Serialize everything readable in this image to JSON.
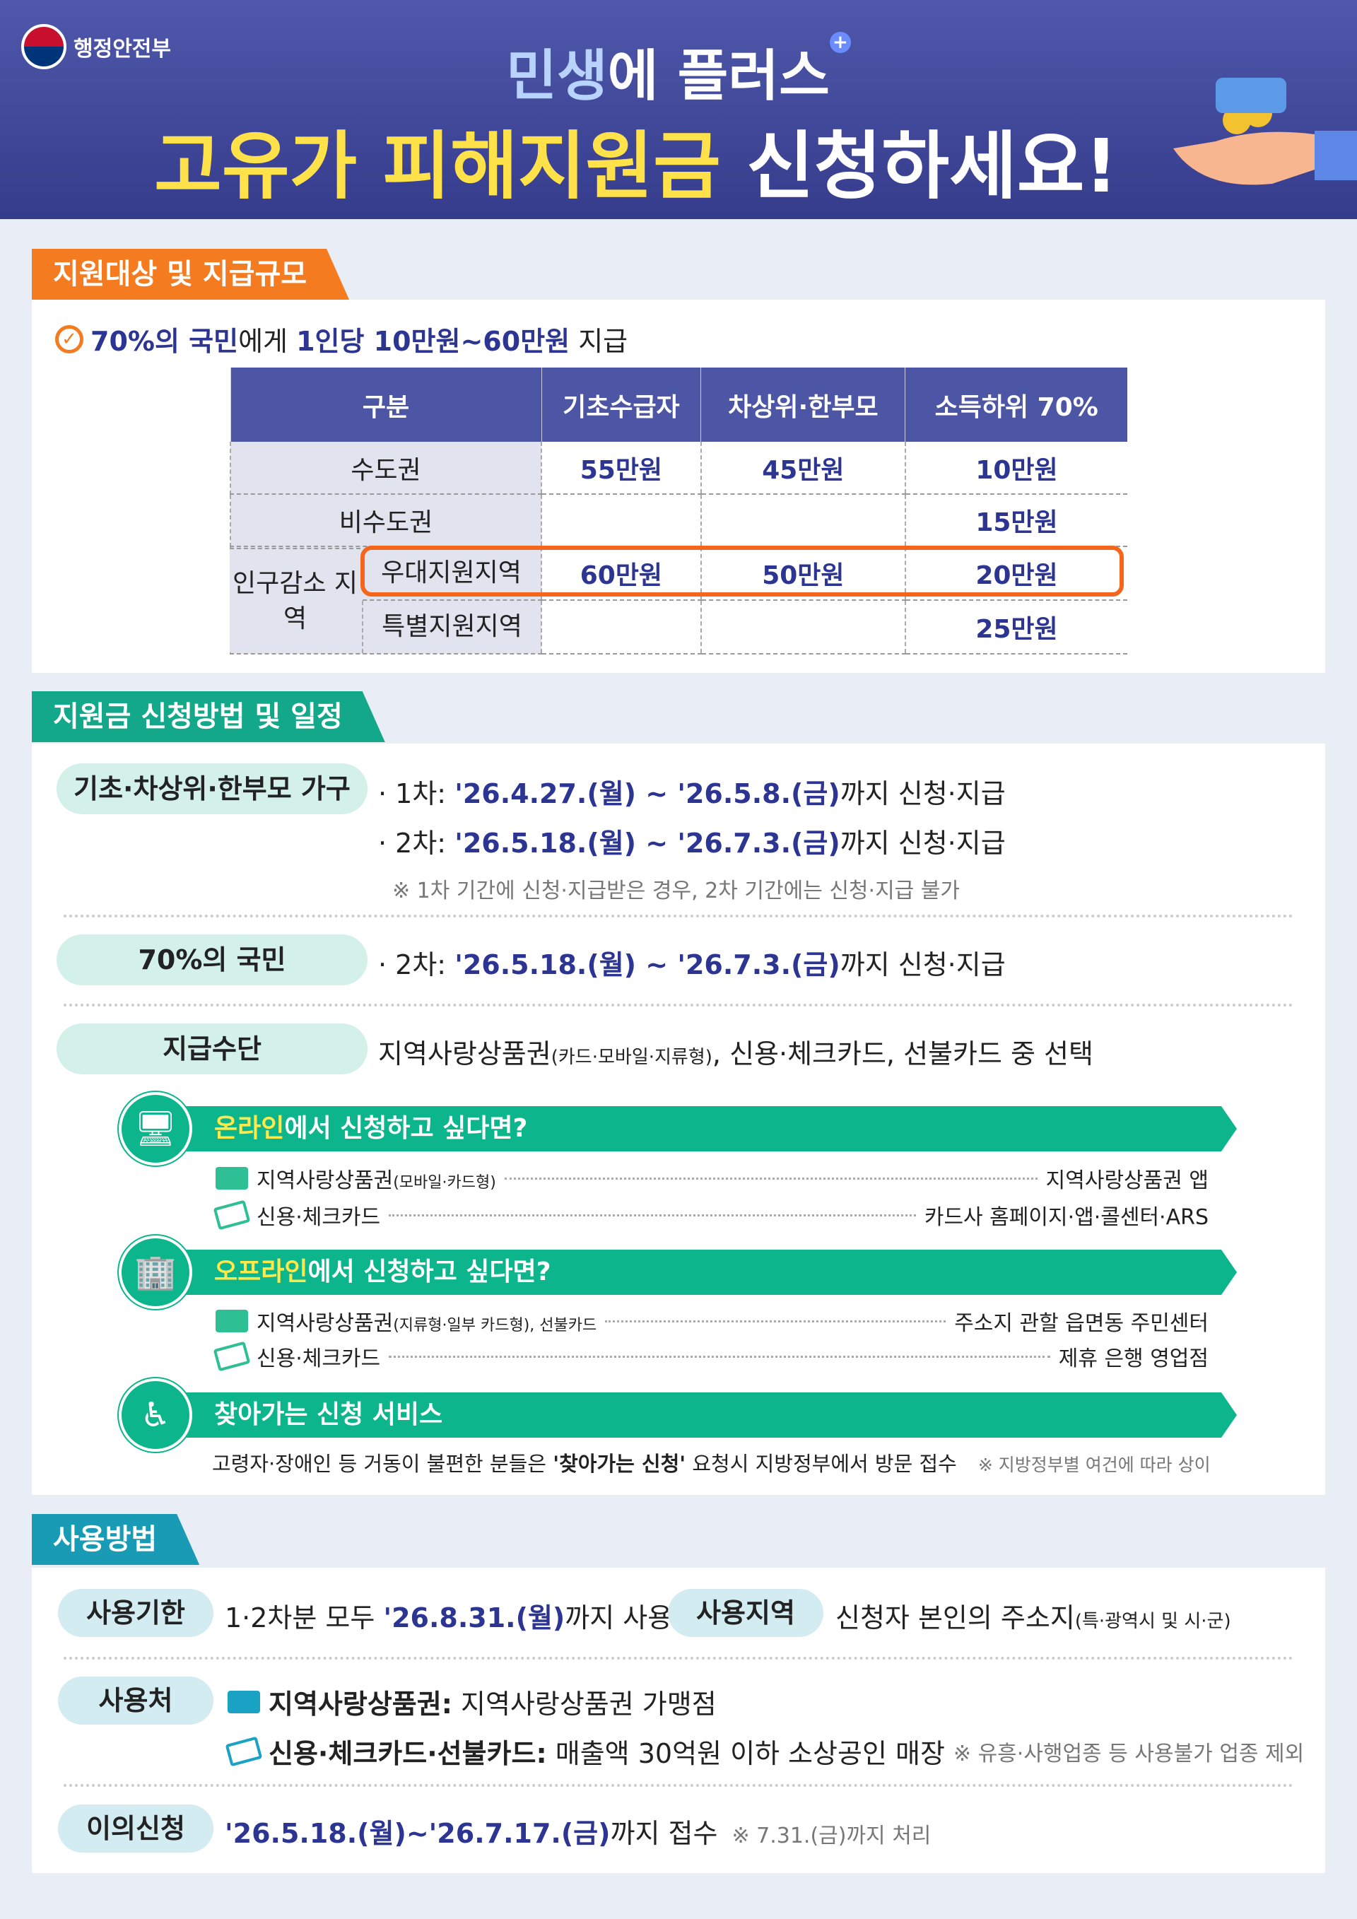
{
  "header": {
    "ministry": "행정안전부",
    "subtitle_hl": "민생",
    "subtitle_rest": "에 플러스",
    "plus": "+",
    "title_hl": "고유가 피해지원금",
    "title_rest": " 신청하세요!"
  },
  "colors": {
    "header": "#4f58ab",
    "section1": "#f47b20",
    "section2": "#14a88a",
    "section3": "#1a9bb5",
    "navy": "#2d3592",
    "highlight": "#f4661c"
  },
  "section1": {
    "tab": "지원대상 및 지급규모",
    "check_a": "70%의 국민",
    "check_b": "에게 ",
    "check_c": "1인당 10만원~60만원",
    "check_d": " 지급",
    "table": {
      "headers": [
        "구분",
        "기초수급자",
        "차상위·한부모",
        "소득하위 70%"
      ],
      "rows": [
        {
          "label": "수도권",
          "values": [
            "55만원",
            "45만원",
            "10만원"
          ]
        },
        {
          "label": "비수도권",
          "values": [
            "",
            "",
            "15만원"
          ]
        },
        {
          "group": "인구감소 지역",
          "label": "우대지원지역",
          "values": [
            "60만원",
            "50만원",
            "20만원"
          ],
          "highlighted": true
        },
        {
          "label": "특별지원지역",
          "values": [
            "",
            "",
            "25만원"
          ]
        }
      ]
    }
  },
  "section2": {
    "tab": "지원금 신청방법 및 일정",
    "group1": {
      "label": "기초·차상위·한부모 가구",
      "r1_pre": "· 1차: ",
      "r1_date": "'26.4.27.(월) ~ '26.5.8.(금)",
      "r1_post": "까지 신청·지급",
      "r2_pre": "· 2차: ",
      "r2_date": "'26.5.18.(월) ~ '26.7.3.(금)",
      "r2_post": "까지 신청·지급",
      "note": "※ 1차 기간에 신청·지급받은 경우, 2차 기간에는 신청·지급 불가"
    },
    "group2": {
      "label": "70%의 국민",
      "r_pre": "· 2차: ",
      "r_date": "'26.5.18.(월) ~ '26.7.3.(금)",
      "r_post": "까지 신청·지급"
    },
    "group3": {
      "label": "지급수단",
      "text_a": "지역사랑상품권",
      "text_small": "(카드·모바일·지류형)",
      "text_b": ", 신용·체크카드, 선불카드 중 선택"
    },
    "online": {
      "hl": "온라인",
      "rest": "에서 신청하고 싶다면?",
      "items": [
        {
          "left": "지역사랑상품권",
          "small": "(모바일·카드형)",
          "right": "지역사랑상품권 앱"
        },
        {
          "left": "신용·체크카드",
          "small": "",
          "right": "카드사 홈페이지·앱·콜센터·ARS"
        }
      ]
    },
    "offline": {
      "hl": "오프라인",
      "rest": "에서 신청하고 싶다면?",
      "items": [
        {
          "left": "지역사랑상품권",
          "small": "(지류형·일부 카드형), 선불카드",
          "right": "주소지 관할 읍면동 주민센터"
        },
        {
          "left": "신용·체크카드",
          "small": "",
          "right": "제휴 은행 영업점"
        }
      ]
    },
    "visit": {
      "title": "찾아가는 신청 서비스",
      "text_a": "고령자·장애인 등 거동이 불편한 분들은 ",
      "text_b": "'찾아가는 신청'",
      "text_c": " 요청시 지방정부에서 방문 접수",
      "note": "※ 지방정부별 여건에 따라 상이"
    }
  },
  "section3": {
    "tab": "사용방법",
    "period": {
      "label": "사용기한",
      "pre": "1·2차분 모두 ",
      "date": "'26.8.31.(월)",
      "post": "까지 사용"
    },
    "area": {
      "label": "사용지역",
      "text": "신청자 본인의 주소지",
      "small": "(특·광역시 및 시·군)"
    },
    "place": {
      "label": "사용처",
      "r1_b": "지역사랑상품권:",
      "r1": " 지역사랑상품권 가맹점",
      "r2_b": "신용·체크카드·선불카드:",
      "r2": " 매출액 30억원 이하 소상공인 매장",
      "r2_note": "※ 유흥·사행업종 등 사용불가 업종 제외"
    },
    "appeal": {
      "label": "이의신청",
      "date": "'26.5.18.(월)~'26.7.17.(금)",
      "post": "까지 접수",
      "note": "※ 7.31.(금)까지 처리"
    }
  }
}
